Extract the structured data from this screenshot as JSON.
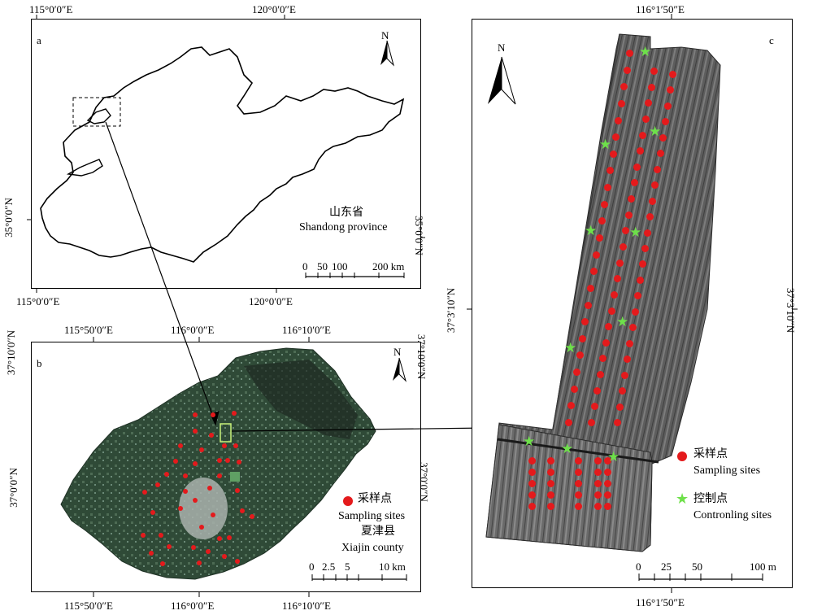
{
  "panel_a": {
    "letter": "a",
    "top_ticks": [
      "115°0′0″E",
      "120°0′0″E"
    ],
    "bottom_ticks": [
      "115°0′0″E",
      "120°0′0″E"
    ],
    "left_tick": "35°0′0″N",
    "right_tick": "35°0′0″N",
    "north": "N",
    "name_cn": "山东省",
    "name_en": "Shandong province",
    "scale_labels": [
      "0",
      "50",
      "100",
      "200 km"
    ]
  },
  "panel_b": {
    "letter": "b",
    "top_ticks": [
      "115°50′0″E",
      "116°0′0″E",
      "116°10′0″E"
    ],
    "bottom_ticks": [
      "115°50′0″E",
      "116°0′0″E",
      "116°10′0″E"
    ],
    "left_ticks": [
      "37°10′0″N",
      "37°0′0″N"
    ],
    "right_ticks": [
      "37°10′0″N",
      "37°0′0″N"
    ],
    "north": "N",
    "legend_cn": "采样点",
    "legend_en": "Sampling sites",
    "county_cn": "夏津县",
    "county_en": "Xiajin county",
    "scale_labels": [
      "0",
      "2.5",
      "5",
      "10 km"
    ]
  },
  "panel_c": {
    "letter": "c",
    "top_tick": "116°1′50″E",
    "bottom_tick": "116°1′50″E",
    "left_tick": "37°3′10″N",
    "right_tick": "37°3′10″N",
    "north": "N",
    "legend_sampling_cn": "采样点",
    "legend_sampling_en": "Sampling sites",
    "legend_control_cn": "控制点",
    "legend_control_en": "Contronling sites",
    "scale_labels": [
      "0",
      "25",
      "50",
      "100 m"
    ]
  },
  "colors": {
    "sampling": "#e41a1c",
    "control": "#6ee04a",
    "arrow": "#000000"
  }
}
